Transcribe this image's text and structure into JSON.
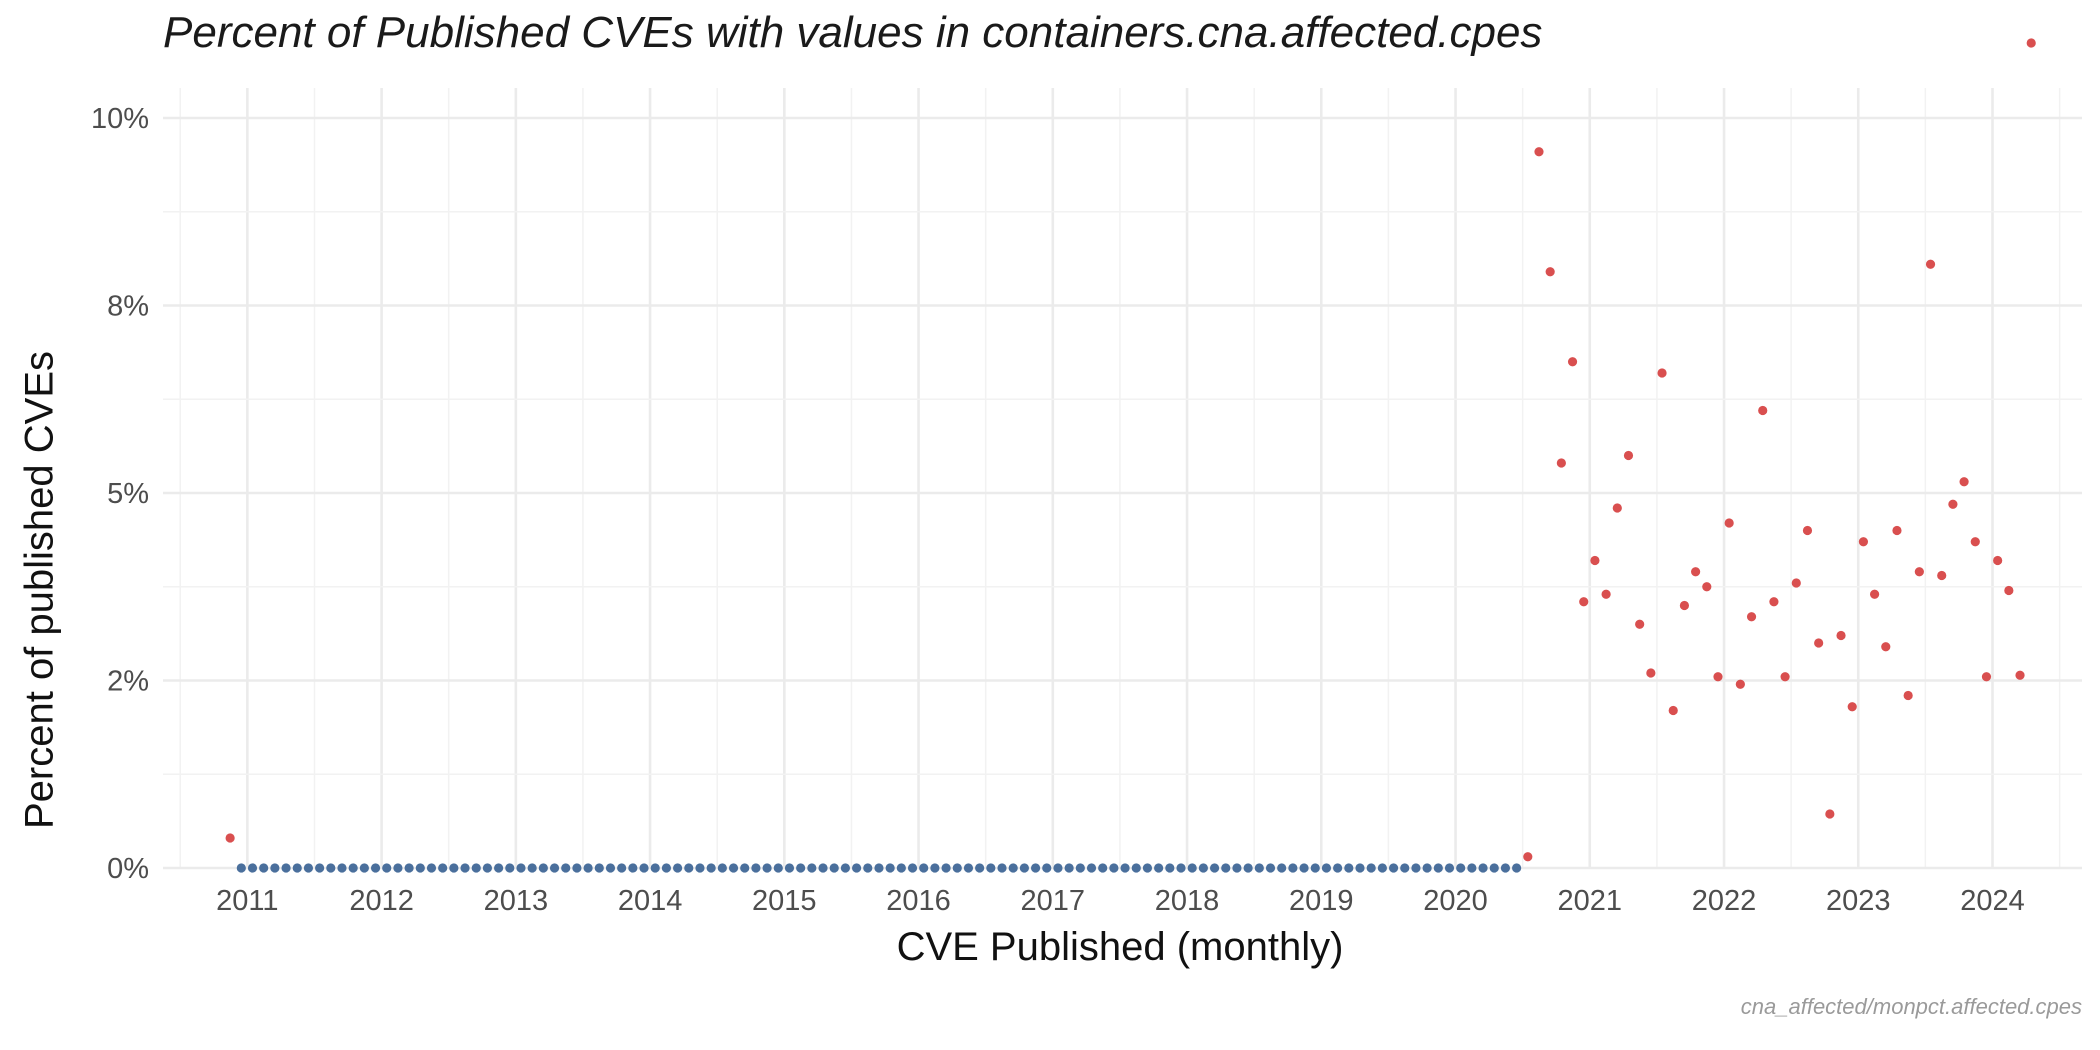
{
  "chart_data": {
    "type": "scatter",
    "title": "Percent of Published CVEs with values in containers.cna.affected.cpes",
    "xlabel": "CVE Published (monthly)",
    "ylabel": "Percent of published CVEs",
    "caption": "cna_affected/monpct.affected.cpes",
    "ylim": [
      0,
      10.4
    ],
    "xlim": [
      "2010-05-15",
      "2024-09-01"
    ],
    "x_ticks": [
      "2011",
      "2012",
      "2013",
      "2014",
      "2015",
      "2016",
      "2017",
      "2018",
      "2019",
      "2020",
      "2021",
      "2022",
      "2023",
      "2024"
    ],
    "y_ticks": [
      {
        "value": 0,
        "label": "0%"
      },
      {
        "value": 2.5,
        "label": "2%"
      },
      {
        "value": 5,
        "label": "5%"
      },
      {
        "value": 7.5,
        "label": "8%"
      },
      {
        "value": 10,
        "label": "10%"
      }
    ],
    "grid": true,
    "legend": "none",
    "series": [
      {
        "color": "#4a6f9c",
        "range": {
          "start": "2010-12",
          "end": "2020-06",
          "value": 0
        }
      },
      {
        "color": "#d94f4f",
        "points": [
          [
            "2010-11",
            0.4
          ],
          [
            "2020-07",
            0.15
          ],
          [
            "2020-08",
            9.55
          ],
          [
            "2020-09",
            7.95
          ],
          [
            "2020-10",
            5.4
          ],
          [
            "2020-11",
            6.75
          ],
          [
            "2020-12",
            3.55
          ],
          [
            "2021-01",
            4.1
          ],
          [
            "2021-02",
            3.65
          ],
          [
            "2021-03",
            4.8
          ],
          [
            "2021-04",
            5.5
          ],
          [
            "2021-05",
            3.25
          ],
          [
            "2021-06",
            2.6
          ],
          [
            "2021-07",
            6.6
          ],
          [
            "2021-08",
            2.1
          ],
          [
            "2021-09",
            3.5
          ],
          [
            "2021-10",
            3.95
          ],
          [
            "2021-11",
            3.75
          ],
          [
            "2021-12",
            2.55
          ],
          [
            "2022-01",
            4.6
          ],
          [
            "2022-02",
            2.45
          ],
          [
            "2022-03",
            3.35
          ],
          [
            "2022-04",
            6.1
          ],
          [
            "2022-05",
            3.55
          ],
          [
            "2022-06",
            2.55
          ],
          [
            "2022-07",
            3.8
          ],
          [
            "2022-08",
            4.5
          ],
          [
            "2022-09",
            3.0
          ],
          [
            "2022-10",
            0.72
          ],
          [
            "2022-11",
            3.1
          ],
          [
            "2022-12",
            2.15
          ],
          [
            "2023-01",
            4.35
          ],
          [
            "2023-02",
            3.65
          ],
          [
            "2023-03",
            2.95
          ],
          [
            "2023-04",
            4.5
          ],
          [
            "2023-05",
            2.3
          ],
          [
            "2023-06",
            3.95
          ],
          [
            "2023-07",
            8.05
          ],
          [
            "2023-08",
            3.9
          ],
          [
            "2023-09",
            4.85
          ],
          [
            "2023-10",
            5.15
          ],
          [
            "2023-11",
            4.35
          ],
          [
            "2023-12",
            2.55
          ],
          [
            "2024-01",
            4.1
          ],
          [
            "2024-02",
            3.7
          ],
          [
            "2024-03",
            2.57
          ],
          [
            "2024-04",
            11.0
          ]
        ]
      }
    ]
  }
}
